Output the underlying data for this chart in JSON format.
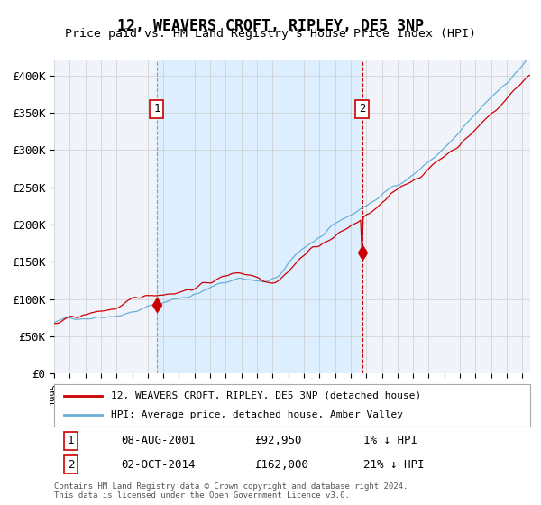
{
  "title": "12, WEAVERS CROFT, RIPLEY, DE5 3NP",
  "subtitle": "Price paid vs. HM Land Registry's House Price Index (HPI)",
  "sale1_date": "2001-08-08",
  "sale1_price": 92950,
  "sale1_label": "1",
  "sale1_note": "08-AUG-2001",
  "sale1_price_str": "£92,950",
  "sale1_hpi_str": "1% ↓ HPI",
  "sale2_date": "2014-10-02",
  "sale2_price": 162000,
  "sale2_label": "2",
  "sale2_note": "02-OCT-2014",
  "sale2_price_str": "£162,000",
  "sale2_hpi_str": "21% ↓ HPI",
  "hpi_color": "#6baed6",
  "price_color": "#cc0000",
  "vline1_color": "#999999",
  "vline2_color": "#cc0000",
  "shade_color": "#ddeeff",
  "ylabel_prefix": "£",
  "yticks": [
    0,
    50000,
    100000,
    150000,
    200000,
    250000,
    300000,
    350000,
    400000
  ],
  "ytick_labels": [
    "£0",
    "£50K",
    "£100K",
    "£150K",
    "£200K",
    "£250K",
    "£300K",
    "£350K",
    "£400K"
  ],
  "ylim": [
    0,
    420000
  ],
  "xlim_start": 1995.0,
  "xlim_end": 2025.5,
  "legend_line1": "12, WEAVERS CROFT, RIPLEY, DE5 3NP (detached house)",
  "legend_line2": "HPI: Average price, detached house, Amber Valley",
  "footer": "Contains HM Land Registry data © Crown copyright and database right 2024.\nThis data is licensed under the Open Government Licence v3.0.",
  "background_color": "#ffffff",
  "plot_bg_color": "#f0f4fa"
}
